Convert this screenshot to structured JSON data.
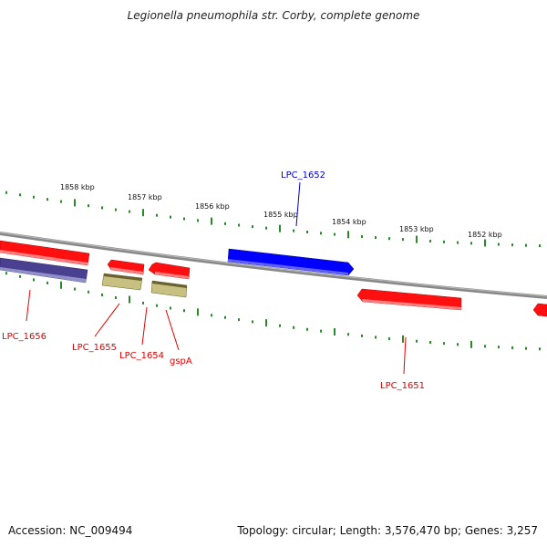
{
  "title": "Legionella pneumophila str. Corby, complete genome",
  "footer": {
    "accession": "Accession: NC_009494",
    "topology": "Topology: circular; Length: 3,576,470 bp; Genes: 3,257"
  },
  "kbp_labels": [
    "1858 kbp",
    "1857 kbp",
    "1856 kbp",
    "1855 kbp",
    "1854 kbp",
    "1853 kbp",
    "1852 kbp"
  ],
  "genes": [
    {
      "name": "LPC_1656",
      "color": "#e00000"
    },
    {
      "name": "LPC_1655",
      "color": "#e00000"
    },
    {
      "name": "LPC_1654",
      "color": "#e00000"
    },
    {
      "name": "gspA",
      "color": "#e00000"
    },
    {
      "name": "LPC_1652",
      "color": "#0000cc"
    },
    {
      "name": "LPC_1651",
      "color": "#e00000"
    }
  ],
  "colors": {
    "forward_gene": "#0000ff",
    "reverse_gene": "#ff0000",
    "rna_like": "#c8c080",
    "other_gene": "#4a4090",
    "ticks": "#2a8a2a",
    "backbone": "#888888"
  }
}
